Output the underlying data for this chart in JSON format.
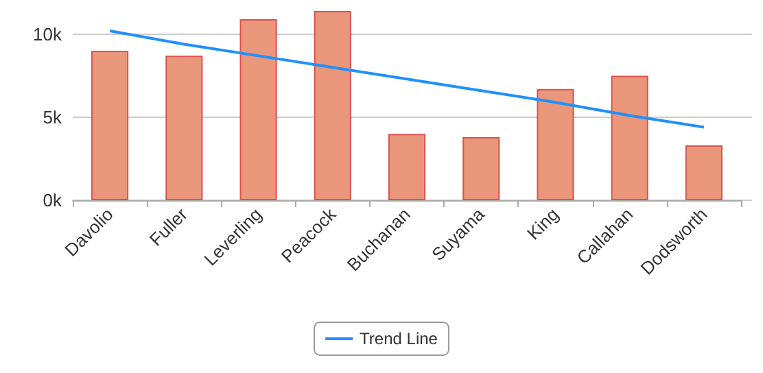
{
  "chart_data": {
    "type": "bar",
    "categories": [
      "Davolio",
      "Fuller",
      "Leverling",
      "Peacock",
      "Buchanan",
      "Suyama",
      "King",
      "Callahan",
      "Dodsworth"
    ],
    "series": [
      {
        "color": "#e9967a",
        "values": [
          9000,
          8700,
          10900,
          11400,
          4000,
          3800,
          6700,
          7500,
          3300
        ]
      },
      {
        "type": "line",
        "name": "Trend Line",
        "color": "#1e90ff",
        "values": [
          10200,
          9400,
          8700,
          8000,
          7300,
          6600,
          5900,
          5100,
          4400
        ]
      }
    ],
    "ylim": [
      0,
      11400
    ],
    "yticks": [
      {
        "value": 0,
        "label": "0k"
      },
      {
        "value": 5000,
        "label": "5k"
      },
      {
        "value": 10000,
        "label": "10k"
      }
    ],
    "grid": "y",
    "legend": "bottom",
    "marker": "none",
    "line_style": "solid"
  }
}
